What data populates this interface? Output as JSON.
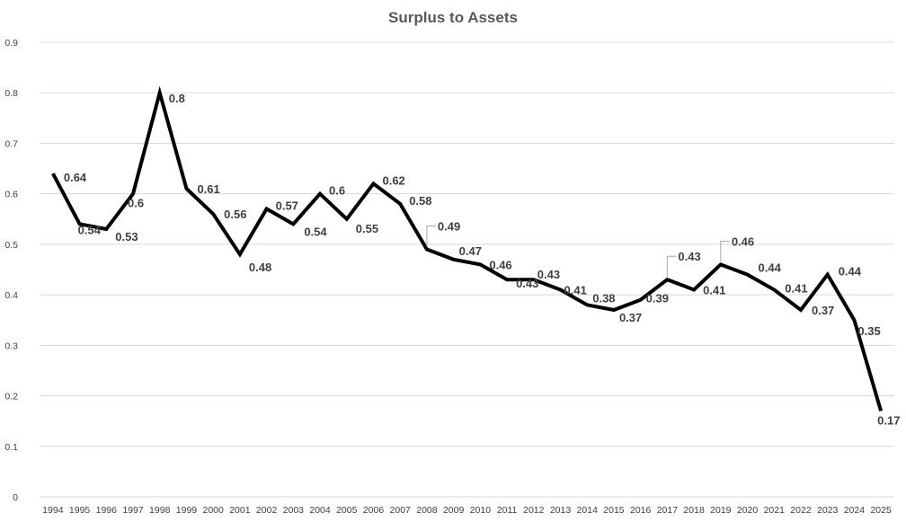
{
  "chart_data": {
    "type": "line",
    "title": "Surplus to Assets",
    "xlabel": "",
    "ylabel": "",
    "ylim": [
      0,
      0.9
    ],
    "yticks": [
      "0",
      "0.1",
      "0.2",
      "0.3",
      "0.4",
      "0.5",
      "0.6",
      "0.7",
      "0.8",
      "0.9"
    ],
    "grid": true,
    "legend": "none",
    "line_color": "#000000",
    "categories": [
      "1994",
      "1995",
      "1996",
      "1997",
      "1998",
      "1999",
      "2000",
      "2001",
      "2002",
      "2003",
      "2004",
      "2005",
      "2006",
      "2007",
      "2008",
      "2009",
      "2010",
      "2011",
      "2012",
      "2013",
      "2014",
      "2015",
      "2016",
      "2017",
      "2018",
      "2019",
      "2020",
      "2021",
      "2022",
      "2023",
      "2024",
      "2025"
    ],
    "series": [
      {
        "values": [
          0.64,
          0.54,
          0.53,
          0.6,
          0.8,
          0.61,
          0.56,
          0.48,
          0.57,
          0.54,
          0.6,
          0.55,
          0.62,
          0.58,
          0.49,
          0.47,
          0.46,
          0.43,
          0.43,
          0.41,
          0.38,
          0.37,
          0.39,
          0.43,
          0.41,
          0.46,
          0.44,
          0.41,
          0.37,
          0.44,
          0.35,
          0.17
        ]
      }
    ],
    "data_labels": [
      "0.64",
      "0.54",
      "0.53",
      "0.6",
      "0.8",
      "0.61",
      "0.56",
      "0.48",
      "0.57",
      "0.54",
      "0.6",
      "0.55",
      "0.62",
      "0.58",
      "0.49",
      "0.47",
      "0.46",
      "0.43",
      "0.43",
      "0.41",
      "0.38",
      "0.37",
      "0.39",
      "0.43",
      "0.41",
      "0.46",
      "0.44",
      "0.41",
      "0.37",
      "0.44",
      "0.35",
      "0.17"
    ]
  }
}
